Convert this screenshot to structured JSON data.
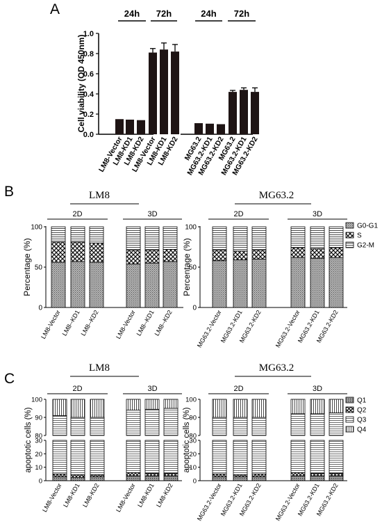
{
  "panels": {
    "A": {
      "letter": "A"
    },
    "B": {
      "letter": "B"
    },
    "C": {
      "letter": "C"
    }
  },
  "colors": {
    "bar": "#1e1414",
    "axis": "#000000",
    "seg_dense": "#8f8f8f"
  },
  "chart_data": [
    {
      "id": "A",
      "type": "bar",
      "title": "",
      "ylabel": "Cell viability (OD 450nm)",
      "xlabel": "",
      "ylim": [
        0,
        1.0
      ],
      "yticks": [
        "0.0",
        "0.2",
        "0.4",
        "0.6",
        "0.8",
        "1.0"
      ],
      "time_labels": [
        "24h",
        "72h",
        "24h",
        "72h"
      ],
      "categories": [
        "LM8-Vector",
        "LM8-KD1",
        "LM8-KD2",
        "LM8-Vector",
        "LM8-KD1",
        "LM8-KD2",
        "MG63.2",
        "MG63.2-KD1",
        "MG63.2-KD2",
        "MG63.2",
        "MG63.2-KD1",
        "MG63.2-KD2"
      ],
      "values": [
        0.15,
        0.145,
        0.14,
        0.81,
        0.84,
        0.82,
        0.11,
        0.105,
        0.1,
        0.42,
        0.44,
        0.42
      ],
      "errors": [
        0.005,
        0.005,
        0.005,
        0.04,
        0.065,
        0.07,
        0.005,
        0.005,
        0.005,
        0.015,
        0.02,
        0.04
      ],
      "grid": false
    },
    {
      "id": "B-LM8",
      "type": "bar",
      "stacked": true,
      "title": "LM8",
      "ylabel": "Percentage (%)",
      "ylim": [
        0,
        100
      ],
      "yticks": [
        "0",
        "50",
        "100"
      ],
      "groups": [
        "2D",
        "3D"
      ],
      "categories": [
        "LM8-Vector",
        "LM8--KD1",
        "LM8--KD2",
        "LM8-Vector",
        "LM8--KD1",
        "LM8--KD2"
      ],
      "series": [
        {
          "name": "G0-G1",
          "values": [
            56,
            57,
            56,
            54,
            55,
            57
          ]
        },
        {
          "name": "S",
          "values": [
            25,
            24,
            24,
            17,
            16,
            15
          ]
        },
        {
          "name": "G2-M",
          "values": [
            19,
            19,
            20,
            29,
            29,
            28
          ]
        }
      ]
    },
    {
      "id": "B-MG63.2",
      "type": "bar",
      "stacked": true,
      "title": "MG63.2",
      "ylabel": "Percentage (%)",
      "ylim": [
        0,
        100
      ],
      "yticks": [
        "0",
        "50",
        "100"
      ],
      "groups": [
        "2D",
        "3D"
      ],
      "categories": [
        "MG63.2-Vector",
        "MG63.2-KD1",
        "MG63.2-KD2",
        "MG63.2-Vector",
        "MG63.2-KD1",
        "MG63.2-KD2"
      ],
      "legend": [
        "G0-G1",
        "S",
        "G2-M"
      ],
      "series": [
        {
          "name": "G0-G1",
          "values": [
            58,
            59,
            60,
            62,
            61,
            62
          ]
        },
        {
          "name": "S",
          "values": [
            13,
            11,
            11,
            12,
            12,
            12
          ]
        },
        {
          "name": "G2-M",
          "values": [
            29,
            30,
            29,
            26,
            27,
            26
          ]
        }
      ]
    },
    {
      "id": "C-LM8",
      "type": "bar",
      "stacked": true,
      "broken_axis": true,
      "title": "LM8",
      "ylabel": "apoptotic cells (%)",
      "ylim_lower": [
        0,
        30
      ],
      "ylim_upper": [
        80,
        100
      ],
      "yticks_lower": [
        "0",
        "10",
        "20",
        "30"
      ],
      "yticks_upper": [
        "80",
        "90",
        "100"
      ],
      "groups": [
        "2D",
        "3D"
      ],
      "categories": [
        "LM8-Vector",
        "LM8-KD1",
        "LM8-KD2",
        "LM8-Vector",
        "LM8-KD1",
        "LM8-KD2"
      ],
      "series": [
        {
          "name": "Q1",
          "values": [
            3,
            2.5,
            3,
            3.5,
            3.5,
            3.5
          ]
        },
        {
          "name": "Q2",
          "values": [
            2,
            2,
            1.5,
            2.5,
            2,
            2
          ]
        },
        {
          "name": "Q3",
          "values": [
            86,
            85.5,
            85.5,
            88,
            89,
            89.5
          ]
        },
        {
          "name": "Q4",
          "values": [
            9,
            10,
            10,
            6,
            5.5,
            5
          ]
        }
      ]
    },
    {
      "id": "C-MG63.2",
      "type": "bar",
      "stacked": true,
      "broken_axis": true,
      "title": "MG63.2",
      "ylabel": "apoptotic cells (%)",
      "ylim_lower": [
        0,
        30
      ],
      "ylim_upper": [
        80,
        100
      ],
      "yticks_lower": [
        "0",
        "10",
        "20",
        "30"
      ],
      "yticks_upper": [
        "80",
        "90",
        "100"
      ],
      "groups": [
        "2D",
        "3D"
      ],
      "categories": [
        "MG63.2-Vector",
        "MG63.2-KD1",
        "MG63.2-KD2",
        "MG63.2-Vector",
        "MG63.2-KD1",
        "MG63.2-KD2"
      ],
      "legend": [
        "Q1",
        "Q2",
        "Q3",
        "Q4"
      ],
      "series": [
        {
          "name": "Q1",
          "values": [
            3,
            3,
            3,
            3.5,
            3.5,
            3.5
          ]
        },
        {
          "name": "Q2",
          "values": [
            2,
            1.5,
            2,
            2.5,
            2,
            2
          ]
        },
        {
          "name": "Q3",
          "values": [
            85,
            85.5,
            85,
            86,
            86.5,
            87
          ]
        },
        {
          "name": "Q4",
          "values": [
            10,
            10,
            10,
            8,
            8,
            7.5
          ]
        }
      ]
    }
  ]
}
